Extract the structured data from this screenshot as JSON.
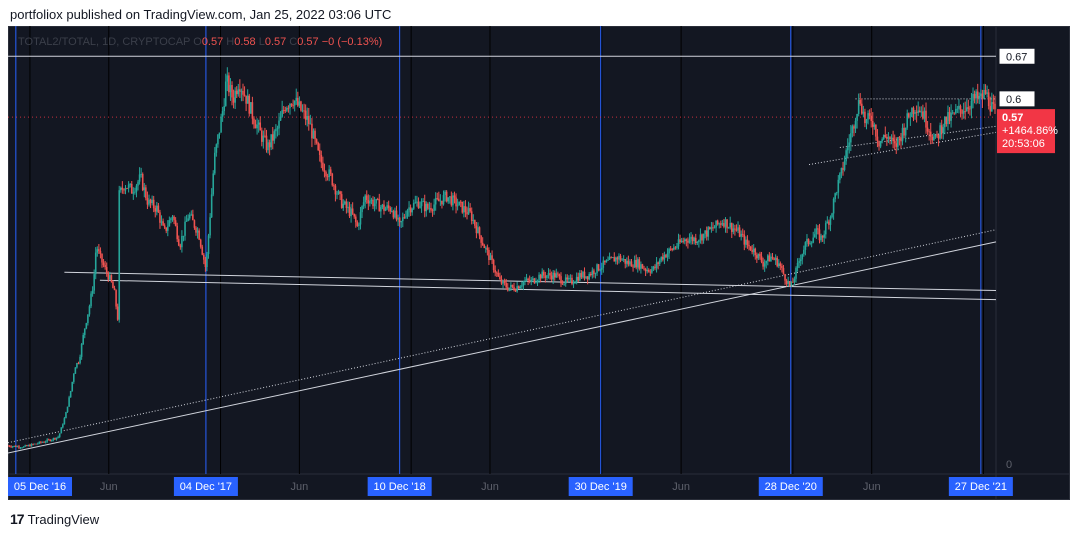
{
  "header": {
    "published": "portfoliox published on TradingView.com, Jan 25, 2022 03:06 UTC"
  },
  "footer": {
    "brand": "TradingView",
    "logo": "tradingview-logo"
  },
  "chart_data": {
    "type": "candlestick",
    "symbol_line": {
      "symbol": "TOTAL2/TOTAL, 1D, CRYPTOCAP",
      "ohlc": [
        {
          "label": "O",
          "value": "0.57"
        },
        {
          "label": "H",
          "value": "0.58"
        },
        {
          "label": "L",
          "value": "0.57"
        },
        {
          "label": "C",
          "value": "0.57"
        }
      ],
      "change": "−0 (−0.13%)"
    },
    "colors": {
      "background": "#131722",
      "up": "#26a69a",
      "down": "#ef5350",
      "vline": "#2962ff",
      "price_tag": "#f23645"
    },
    "y_axis": {
      "ticks": [
        "0.67",
        "0.6",
        "0"
      ],
      "range": [
        0,
        0.7
      ]
    },
    "x_axis": {
      "range": [
        "2016-11-20",
        "2022-01-25"
      ],
      "highlighted_ticks": [
        {
          "date": "2016-12-05",
          "label": "05 Dec '16"
        },
        {
          "date": "2017-12-04",
          "label": "04 Dec '17"
        },
        {
          "date": "2018-12-10",
          "label": "10 Dec '18"
        },
        {
          "date": "2019-12-30",
          "label": "30 Dec '19"
        },
        {
          "date": "2020-12-28",
          "label": "28 Dec '20"
        },
        {
          "date": "2021-12-27",
          "label": "27 Dec '21"
        }
      ],
      "minor_ticks": [
        {
          "date": "2017-06-01",
          "label": "Jun"
        },
        {
          "date": "2018-06-01",
          "label": "Jun"
        },
        {
          "date": "2019-06-01",
          "label": "Jun"
        },
        {
          "date": "2020-06-01",
          "label": "Jun"
        },
        {
          "date": "2021-06-01",
          "label": "Jun"
        }
      ]
    },
    "last_price": {
      "value": "0.57",
      "change": "+1464.86%",
      "countdown": "20:53:06",
      "y": 0.57
    },
    "levels": [
      {
        "name": "level-0.67",
        "y": 0.67,
        "style": "solid"
      },
      {
        "name": "level-0.6",
        "y": 0.6,
        "style": "dotted"
      }
    ],
    "trendlines": [
      {
        "name": "support-trendline",
        "style": "solid",
        "from": {
          "date": "2016-11-20",
          "y": 0.018
        },
        "to": {
          "date": "2022-01-25",
          "y": 0.365
        }
      },
      {
        "name": "support-trendline-dotted",
        "style": "dotted",
        "from": {
          "date": "2016-11-20",
          "y": 0.035
        },
        "to": {
          "date": "2022-01-25",
          "y": 0.385
        }
      },
      {
        "name": "horizontal-trendline-upper",
        "style": "solid",
        "from": {
          "date": "2017-03-08",
          "y": 0.315
        },
        "to": {
          "date": "2022-01-25",
          "y": 0.285
        }
      },
      {
        "name": "horizontal-trendline-lower",
        "style": "solid",
        "from": {
          "date": "2017-05-15",
          "y": 0.302
        },
        "to": {
          "date": "2022-01-25",
          "y": 0.27
        }
      },
      {
        "name": "channel-line-upper",
        "style": "dotted",
        "from": {
          "date": "2021-04-01",
          "y": 0.52
        },
        "to": {
          "date": "2022-01-25",
          "y": 0.555
        }
      },
      {
        "name": "channel-line-lower",
        "style": "dotted",
        "from": {
          "date": "2021-02-01",
          "y": 0.492
        },
        "to": {
          "date": "2022-01-25",
          "y": 0.545
        }
      }
    ],
    "price_path": [
      [
        "2016-11-20",
        0.03
      ],
      [
        "2016-12-20",
        0.028
      ],
      [
        "2017-01-20",
        0.035
      ],
      [
        "2017-02-10",
        0.04
      ],
      [
        "2017-02-25",
        0.045
      ],
      [
        "2017-03-10",
        0.08
      ],
      [
        "2017-03-20",
        0.12
      ],
      [
        "2017-03-28",
        0.16
      ],
      [
        "2017-04-05",
        0.17
      ],
      [
        "2017-04-15",
        0.22
      ],
      [
        "2017-04-25",
        0.26
      ],
      [
        "2017-05-03",
        0.3
      ],
      [
        "2017-05-08",
        0.36
      ],
      [
        "2017-05-15",
        0.34
      ],
      [
        "2017-05-25",
        0.32
      ],
      [
        "2017-06-05",
        0.3
      ],
      [
        "2017-06-12",
        0.28
      ],
      [
        "2017-06-18",
        0.24
      ],
      [
        "2017-06-20",
        0.44
      ],
      [
        "2017-07-01",
        0.46
      ],
      [
        "2017-07-15",
        0.45
      ],
      [
        "2017-08-01",
        0.47
      ],
      [
        "2017-08-15",
        0.43
      ],
      [
        "2017-09-01",
        0.42
      ],
      [
        "2017-09-15",
        0.38
      ],
      [
        "2017-10-01",
        0.41
      ],
      [
        "2017-10-15",
        0.36
      ],
      [
        "2017-11-01",
        0.41
      ],
      [
        "2017-11-20",
        0.38
      ],
      [
        "2017-12-04",
        0.32
      ],
      [
        "2017-12-20",
        0.5
      ],
      [
        "2018-01-05",
        0.58
      ],
      [
        "2018-01-12",
        0.63
      ],
      [
        "2018-01-25",
        0.6
      ],
      [
        "2018-02-05",
        0.63
      ],
      [
        "2018-02-20",
        0.6
      ],
      [
        "2018-03-05",
        0.57
      ],
      [
        "2018-03-20",
        0.54
      ],
      [
        "2018-04-01",
        0.52
      ],
      [
        "2018-04-20",
        0.55
      ],
      [
        "2018-05-05",
        0.59
      ],
      [
        "2018-05-20",
        0.6
      ],
      [
        "2018-06-05",
        0.58
      ],
      [
        "2018-06-20",
        0.56
      ],
      [
        "2018-07-10",
        0.5
      ],
      [
        "2018-08-01",
        0.47
      ],
      [
        "2018-08-20",
        0.43
      ],
      [
        "2018-09-10",
        0.41
      ],
      [
        "2018-09-20",
        0.39
      ],
      [
        "2018-10-05",
        0.44
      ],
      [
        "2018-10-20",
        0.43
      ],
      [
        "2018-11-10",
        0.42
      ],
      [
        "2018-11-25",
        0.42
      ],
      [
        "2018-12-10",
        0.39
      ],
      [
        "2018-12-25",
        0.42
      ],
      [
        "2019-01-15",
        0.43
      ],
      [
        "2019-02-01",
        0.42
      ],
      [
        "2019-02-20",
        0.43
      ],
      [
        "2019-03-10",
        0.44
      ],
      [
        "2019-03-25",
        0.43
      ],
      [
        "2019-04-10",
        0.42
      ],
      [
        "2019-04-25",
        0.41
      ],
      [
        "2019-05-05",
        0.39
      ],
      [
        "2019-05-20",
        0.36
      ],
      [
        "2019-06-05",
        0.33
      ],
      [
        "2019-06-20",
        0.3
      ],
      [
        "2019-07-05",
        0.29
      ],
      [
        "2019-07-20",
        0.29
      ],
      [
        "2019-08-05",
        0.3
      ],
      [
        "2019-08-20",
        0.3
      ],
      [
        "2019-09-05",
        0.31
      ],
      [
        "2019-09-20",
        0.31
      ],
      [
        "2019-10-05",
        0.31
      ],
      [
        "2019-10-20",
        0.3
      ],
      [
        "2019-11-05",
        0.3
      ],
      [
        "2019-11-20",
        0.31
      ],
      [
        "2019-12-05",
        0.31
      ],
      [
        "2019-12-20",
        0.32
      ],
      [
        "2020-01-10",
        0.33
      ],
      [
        "2020-02-01",
        0.34
      ],
      [
        "2020-02-20",
        0.33
      ],
      [
        "2020-03-10",
        0.33
      ],
      [
        "2020-03-25",
        0.32
      ],
      [
        "2020-04-10",
        0.32
      ],
      [
        "2020-04-25",
        0.34
      ],
      [
        "2020-05-10",
        0.35
      ],
      [
        "2020-05-25",
        0.36
      ],
      [
        "2020-06-10",
        0.37
      ],
      [
        "2020-07-01",
        0.37
      ],
      [
        "2020-07-20",
        0.38
      ],
      [
        "2020-08-05",
        0.39
      ],
      [
        "2020-08-20",
        0.4
      ],
      [
        "2020-09-05",
        0.39
      ],
      [
        "2020-09-20",
        0.38
      ],
      [
        "2020-10-05",
        0.36
      ],
      [
        "2020-10-20",
        0.35
      ],
      [
        "2020-11-05",
        0.33
      ],
      [
        "2020-11-20",
        0.34
      ],
      [
        "2020-12-05",
        0.33
      ],
      [
        "2020-12-15",
        0.31
      ],
      [
        "2020-12-28",
        0.29
      ],
      [
        "2021-01-05",
        0.31
      ],
      [
        "2021-01-15",
        0.34
      ],
      [
        "2021-01-25",
        0.36
      ],
      [
        "2021-02-05",
        0.37
      ],
      [
        "2021-02-15",
        0.38
      ],
      [
        "2021-02-25",
        0.37
      ],
      [
        "2021-03-05",
        0.39
      ],
      [
        "2021-03-15",
        0.41
      ],
      [
        "2021-03-25",
        0.45
      ],
      [
        "2021-04-05",
        0.48
      ],
      [
        "2021-04-15",
        0.52
      ],
      [
        "2021-04-25",
        0.55
      ],
      [
        "2021-05-02",
        0.58
      ],
      [
        "2021-05-10",
        0.6
      ],
      [
        "2021-05-20",
        0.56
      ],
      [
        "2021-06-01",
        0.57
      ],
      [
        "2021-06-15",
        0.53
      ],
      [
        "2021-07-01",
        0.54
      ],
      [
        "2021-07-15",
        0.52
      ],
      [
        "2021-08-01",
        0.55
      ],
      [
        "2021-08-15",
        0.58
      ],
      [
        "2021-08-25",
        0.59
      ],
      [
        "2021-09-05",
        0.58
      ],
      [
        "2021-09-20",
        0.55
      ],
      [
        "2021-10-01",
        0.53
      ],
      [
        "2021-10-15",
        0.56
      ],
      [
        "2021-11-01",
        0.57
      ],
      [
        "2021-11-15",
        0.58
      ],
      [
        "2021-12-01",
        0.59
      ],
      [
        "2021-12-15",
        0.6
      ],
      [
        "2021-12-27",
        0.6
      ],
      [
        "2022-01-05",
        0.61
      ],
      [
        "2022-01-15",
        0.59
      ],
      [
        "2022-01-25",
        0.57
      ]
    ]
  }
}
